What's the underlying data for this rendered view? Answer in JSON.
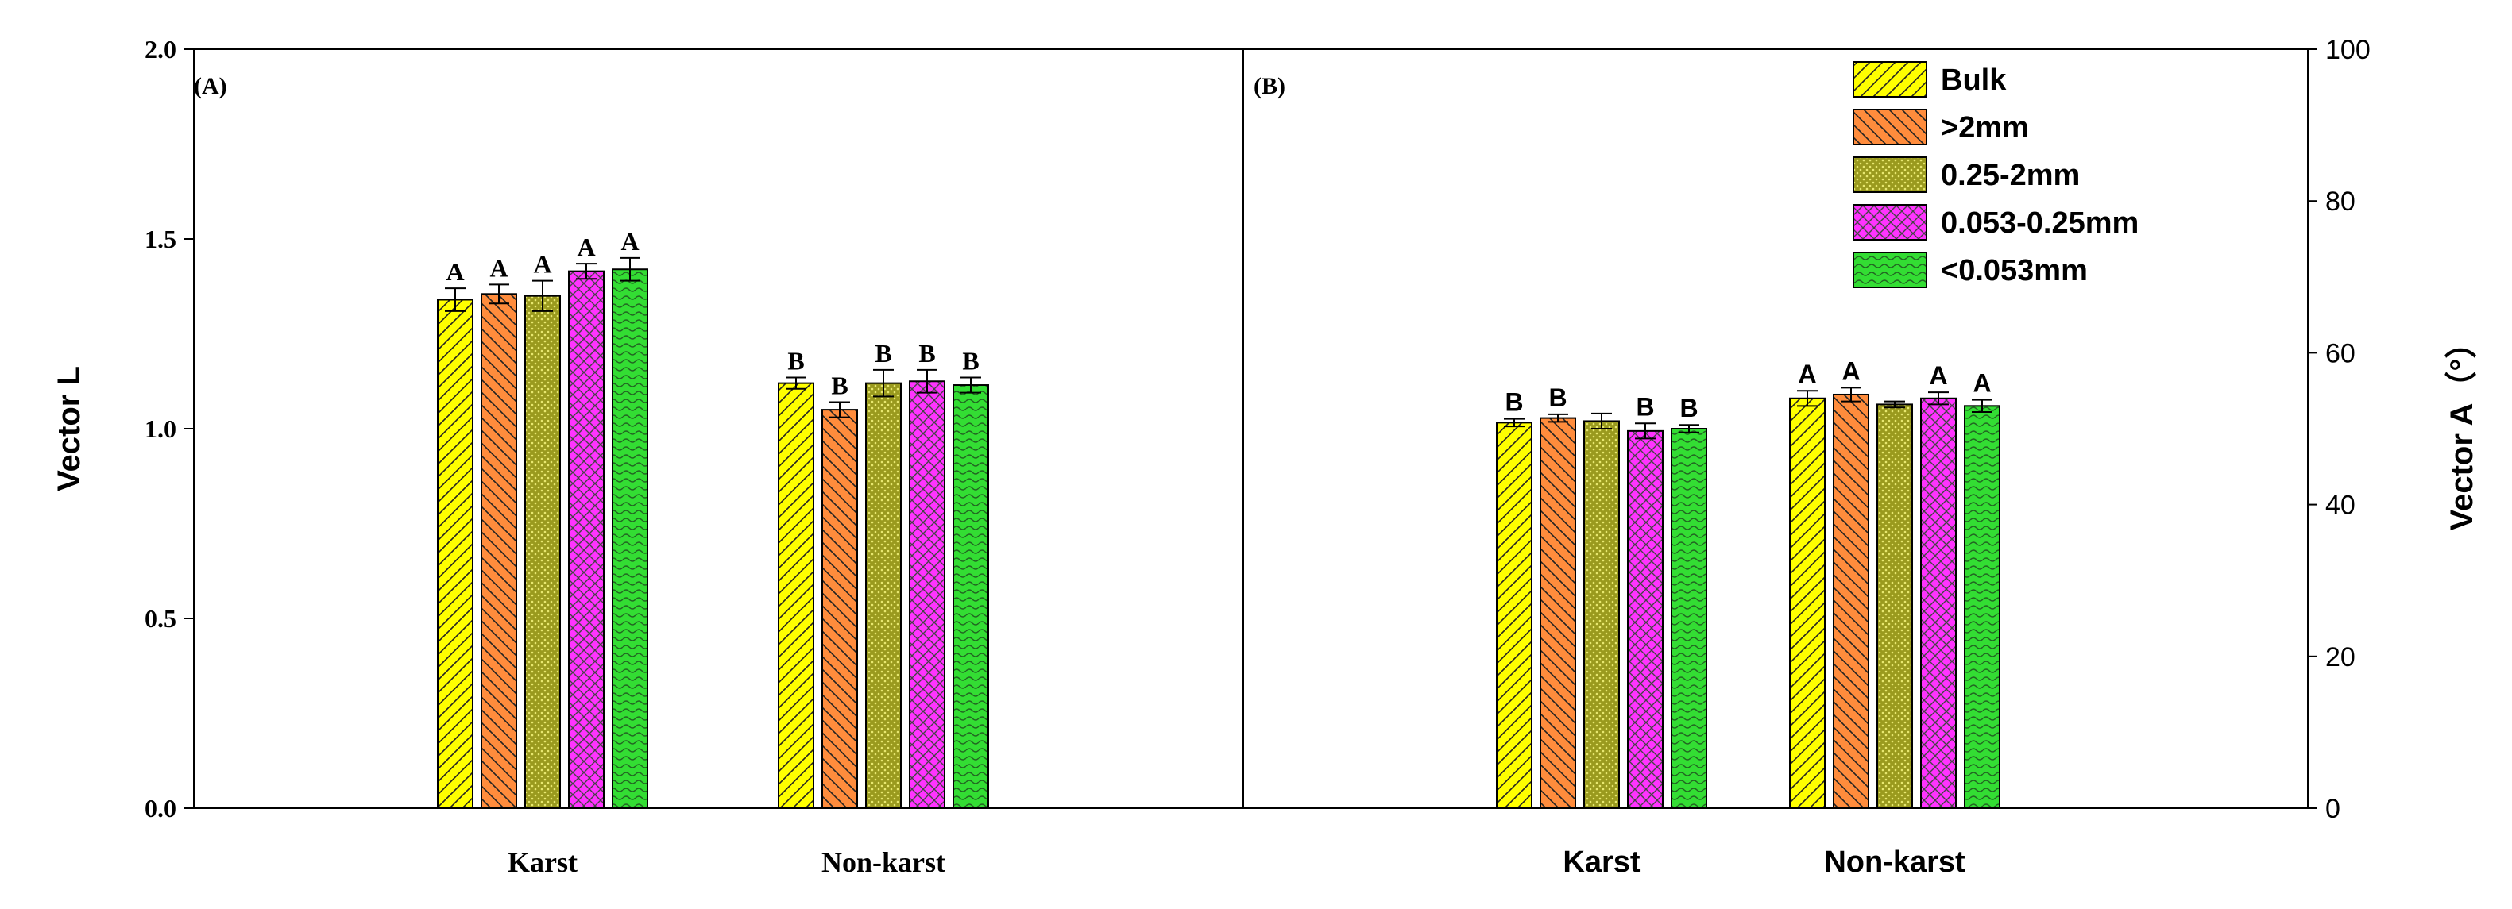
{
  "colors": {
    "Bulk": "#ffff00",
    ">2mm": "#ff8c3c",
    "0.25-2mm": "#9a9a1e",
    "0.053-0.25mm": "#ff33ff",
    "<0.053mm": "#33dd33"
  },
  "legend": [
    "Bulk",
    ">2mm",
    "0.25-2mm",
    "0.053-0.25mm",
    "<0.053mm"
  ],
  "chart_data": [
    {
      "type": "bar",
      "panel_label": "(A)",
      "ylabel": "Vector L",
      "ylim": [
        0,
        2.0
      ],
      "yticks": [
        "0.0",
        "0.5",
        "1.0",
        "1.5",
        "2.0"
      ],
      "categories": [
        "Karst",
        "Non-karst"
      ],
      "series": [
        {
          "name": "Bulk",
          "values": [
            1.34,
            1.12
          ],
          "errors": [
            0.03,
            0.015
          ],
          "letters": [
            "A",
            "B"
          ]
        },
        {
          "name": ">2mm",
          "values": [
            1.355,
            1.05
          ],
          "errors": [
            0.025,
            0.02
          ],
          "letters": [
            "A",
            "B"
          ]
        },
        {
          "name": "0.25-2mm",
          "values": [
            1.35,
            1.12
          ],
          "errors": [
            0.04,
            0.035
          ],
          "letters": [
            "A",
            "B"
          ]
        },
        {
          "name": "0.053-0.25mm",
          "values": [
            1.415,
            1.125
          ],
          "errors": [
            0.02,
            0.03
          ],
          "letters": [
            "A",
            "B"
          ]
        },
        {
          "name": "<0.053mm",
          "values": [
            1.42,
            1.115
          ],
          "errors": [
            0.03,
            0.02
          ],
          "letters": [
            "A",
            "B"
          ]
        }
      ]
    },
    {
      "type": "bar",
      "panel_label": "(B)",
      "ylabel": "Vector A（°）",
      "ylim": [
        0,
        100
      ],
      "yticks": [
        "0",
        "20",
        "40",
        "60",
        "80",
        "100"
      ],
      "categories": [
        "Karst",
        "Non-karst"
      ],
      "series": [
        {
          "name": "Bulk",
          "values": [
            50.8,
            54.0
          ],
          "errors": [
            0.5,
            1.0
          ],
          "letters": [
            "B",
            "A"
          ]
        },
        {
          "name": ">2mm",
          "values": [
            51.4,
            54.5
          ],
          "errors": [
            0.5,
            0.9
          ],
          "letters": [
            "B",
            "A"
          ]
        },
        {
          "name": "0.25-2mm",
          "values": [
            51.0,
            53.2
          ],
          "errors": [
            1.0,
            0.4
          ],
          "letters": [
            "",
            ""
          ]
        },
        {
          "name": "0.053-0.25mm",
          "values": [
            49.7,
            54.0
          ],
          "errors": [
            1.0,
            0.8
          ],
          "letters": [
            "B",
            "A"
          ]
        },
        {
          "name": "<0.053mm",
          "values": [
            50.0,
            53.0
          ],
          "errors": [
            0.5,
            0.8
          ],
          "letters": [
            "B",
            "A"
          ]
        }
      ]
    }
  ]
}
